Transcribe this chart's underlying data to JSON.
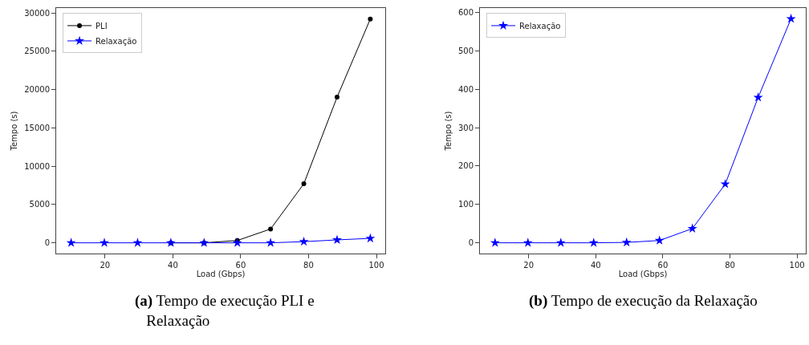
{
  "chart_data": [
    {
      "type": "line",
      "xlabel": "Load (Gbps)",
      "ylabel": "Tempo (s)",
      "x": [
        10,
        19.8,
        29.6,
        39.4,
        49.2,
        59,
        68.8,
        78.6,
        88.4,
        98.2
      ],
      "series": [
        {
          "name": "PLI",
          "color": "#000000",
          "marker": "circle",
          "values": [
            null,
            null,
            null,
            0,
            0,
            300,
            1800,
            7700,
            19000,
            29200
          ]
        },
        {
          "name": "Relaxação",
          "color": "#0000ff",
          "marker": "star",
          "values": [
            0,
            0,
            0,
            0,
            0,
            0,
            0,
            150,
            380,
            580
          ]
        }
      ],
      "xlim": [
        5.6,
        102.6
      ],
      "xticks": [
        20,
        40,
        60,
        80,
        100
      ],
      "ylim": [
        -1400,
        30630
      ],
      "yticks": [
        0,
        5000,
        10000,
        15000,
        20000,
        25000,
        30000
      ],
      "legend": "top left",
      "line_style": "solid",
      "annotations": [
        "(a) Tempo de execução PLI e Relaxação"
      ]
    },
    {
      "type": "line",
      "xlabel": "Load (Gbps)",
      "ylabel": "Tempo (s)",
      "x": [
        10,
        19.8,
        29.6,
        39.4,
        49.2,
        59,
        68.8,
        78.6,
        88.4,
        98.2
      ],
      "series": [
        {
          "name": "Relaxação",
          "color": "#0000ff",
          "marker": "star",
          "values": [
            0,
            0,
            0,
            0,
            1,
            6,
            37,
            153,
            379,
            584
          ]
        }
      ],
      "xlim": [
        5.5,
        102.6
      ],
      "xticks": [
        20,
        40,
        60,
        80,
        100
      ],
      "ylim": [
        -28,
        612
      ],
      "yticks": [
        0,
        100,
        200,
        300,
        400,
        500,
        600
      ],
      "legend": "top left",
      "line_style": "solid",
      "annotations": [
        "(b) Tempo de execução da Relaxação"
      ]
    }
  ]
}
